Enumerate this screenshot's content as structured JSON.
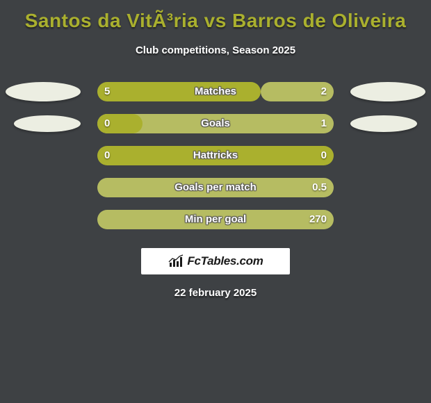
{
  "title": "Santos da VitÃ³ria vs Barros de Oliveira",
  "subtitle": "Club competitions, Season 2025",
  "date": "22 february 2025",
  "branding_text": "FcTables.com",
  "colors": {
    "background": "#3e4144",
    "accent_left": "#aab02e",
    "accent_right": "#b6bc62",
    "ellipse": "#eceee2",
    "text": "#ffffff",
    "title": "#aab02e"
  },
  "bar_track": {
    "height": 28,
    "radius": 14
  },
  "stats": [
    {
      "label": "Matches",
      "left_value": "5",
      "right_value": "2",
      "left_pct": 69,
      "right_pct": 31,
      "left_color": "#aab02e",
      "right_color": "#b6bc62",
      "show_left_ellipse": true,
      "show_right_ellipse": true,
      "ellipse_small": false
    },
    {
      "label": "Goals",
      "left_value": "0",
      "right_value": "1",
      "left_pct": 19,
      "right_pct": 100,
      "left_color": "#aab02e",
      "right_color": "#b6bc62",
      "show_left_ellipse": true,
      "show_right_ellipse": true,
      "ellipse_small": true
    },
    {
      "label": "Hattricks",
      "left_value": "0",
      "right_value": "0",
      "left_pct": 100,
      "right_pct": 0,
      "left_color": "#aab02e",
      "right_color": "#b6bc62",
      "show_left_ellipse": false,
      "show_right_ellipse": false
    },
    {
      "label": "Goals per match",
      "left_value": "",
      "right_value": "0.5",
      "left_pct": 0,
      "right_pct": 100,
      "left_color": "#aab02e",
      "right_color": "#b6bc62",
      "show_left_ellipse": false,
      "show_right_ellipse": false
    },
    {
      "label": "Min per goal",
      "left_value": "",
      "right_value": "270",
      "left_pct": 0,
      "right_pct": 100,
      "left_color": "#aab02e",
      "right_color": "#b6bc62",
      "show_left_ellipse": false,
      "show_right_ellipse": false
    }
  ]
}
